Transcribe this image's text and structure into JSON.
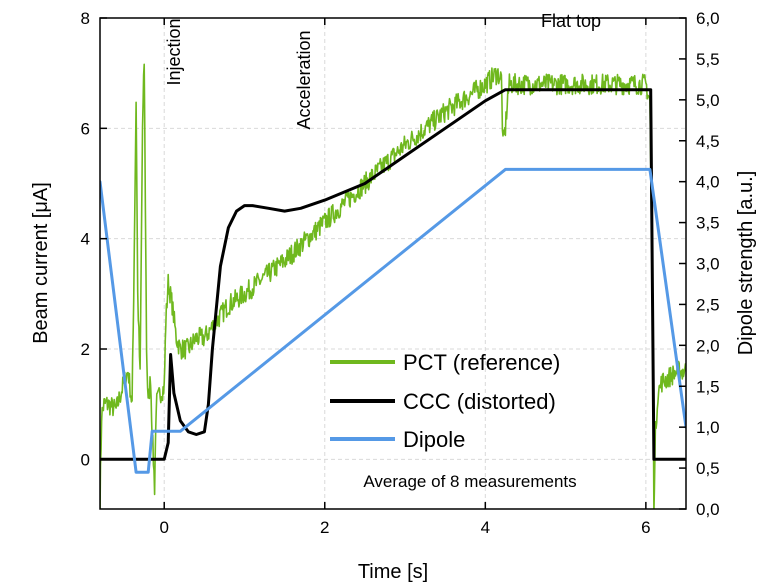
{
  "chart_data": {
    "type": "line",
    "xlabel": "Time [s]",
    "ylabel": "Beam current [μA]",
    "y2label": "Dipole strength [a.u.]",
    "xlim": [
      -0.8,
      6.5
    ],
    "ylim": [
      -0.9,
      8.0
    ],
    "y2lim": [
      0.0,
      6.0
    ],
    "grid": true,
    "legend_position": "bottom-right",
    "x_ticks": [
      "0",
      "2",
      "4",
      "6"
    ],
    "y_ticks": [
      "0",
      "2",
      "4",
      "6",
      "8"
    ],
    "y2_ticks": [
      "0,0",
      "0,5",
      "1,0",
      "1,5",
      "2,0",
      "2,5",
      "3,0",
      "3,5",
      "4,0",
      "4,5",
      "5,0",
      "5,5",
      "6,0"
    ],
    "annotations": [
      {
        "text": "Injection",
        "x": 0.08,
        "rotation": -90
      },
      {
        "text": "Acceleration",
        "x": 1.85,
        "rotation": -90
      },
      {
        "text": "Flat top",
        "x": 5.2,
        "rotation": 0
      }
    ],
    "note": "Average of 8 measurements",
    "series": [
      {
        "name": "PCT (reference)",
        "color": "#6fb81e",
        "axis": "left",
        "noisy": true,
        "x": [
          -0.8,
          -0.78,
          -0.75,
          -0.7,
          -0.6,
          -0.5,
          -0.45,
          -0.4,
          -0.38,
          -0.35,
          -0.33,
          -0.3,
          -0.27,
          -0.25,
          -0.22,
          -0.2,
          -0.17,
          -0.15,
          -0.12,
          -0.1,
          -0.05,
          0.0,
          0.02,
          0.05,
          0.1,
          0.15,
          0.2,
          0.3,
          0.4,
          0.5,
          0.6,
          0.7,
          0.8,
          1.0,
          1.5,
          2.0,
          2.5,
          3.0,
          3.5,
          4.0,
          4.15,
          4.2,
          4.22,
          4.25,
          4.28,
          4.3,
          4.5,
          5.0,
          5.5,
          6.0,
          6.05,
          6.08,
          6.1,
          6.12,
          6.15,
          6.2,
          6.3,
          6.4,
          6.5
        ],
        "y": [
          -0.8,
          0.8,
          1.0,
          1.0,
          0.9,
          1.4,
          1.6,
          1.0,
          3.0,
          6.5,
          3.0,
          1.5,
          6.0,
          7.2,
          2.0,
          1.0,
          1.5,
          0.5,
          -0.5,
          1.0,
          1.2,
          1.3,
          2.5,
          3.2,
          2.8,
          2.2,
          2.0,
          2.0,
          2.2,
          2.2,
          2.4,
          2.6,
          2.8,
          3.0,
          3.6,
          4.3,
          5.0,
          5.7,
          6.3,
          6.8,
          7.0,
          6.9,
          5.7,
          6.0,
          6.6,
          6.8,
          6.8,
          6.8,
          6.8,
          6.8,
          6.5,
          3.0,
          -0.8,
          0.5,
          1.2,
          1.4,
          1.5,
          1.6,
          1.6
        ]
      },
      {
        "name": "CCC (distorted)",
        "color": "#000000",
        "axis": "left",
        "noisy": false,
        "x": [
          -0.8,
          -0.1,
          0.0,
          0.05,
          0.08,
          0.12,
          0.2,
          0.3,
          0.4,
          0.5,
          0.55,
          0.6,
          0.7,
          0.8,
          0.9,
          1.0,
          1.1,
          1.3,
          1.5,
          1.7,
          2.0,
          2.5,
          3.0,
          3.5,
          4.0,
          4.25,
          4.5,
          5.0,
          5.5,
          6.0,
          6.06,
          6.1,
          6.3,
          6.5
        ],
        "y": [
          0.0,
          0.0,
          0.0,
          0.3,
          1.9,
          1.2,
          0.7,
          0.5,
          0.45,
          0.5,
          1.0,
          2.0,
          3.5,
          4.2,
          4.5,
          4.6,
          4.6,
          4.55,
          4.5,
          4.55,
          4.7,
          5.0,
          5.5,
          6.0,
          6.5,
          6.7,
          6.7,
          6.7,
          6.7,
          6.7,
          6.7,
          0.0,
          0.0,
          0.0
        ]
      },
      {
        "name": "Dipole",
        "color": "#5599e6",
        "axis": "right",
        "noisy": false,
        "x": [
          -0.8,
          -0.35,
          -0.2,
          -0.15,
          0.0,
          0.2,
          4.25,
          6.05,
          6.5
        ],
        "y": [
          4.0,
          0.45,
          0.45,
          0.95,
          0.95,
          0.95,
          4.15,
          4.15,
          1.0
        ]
      }
    ]
  }
}
